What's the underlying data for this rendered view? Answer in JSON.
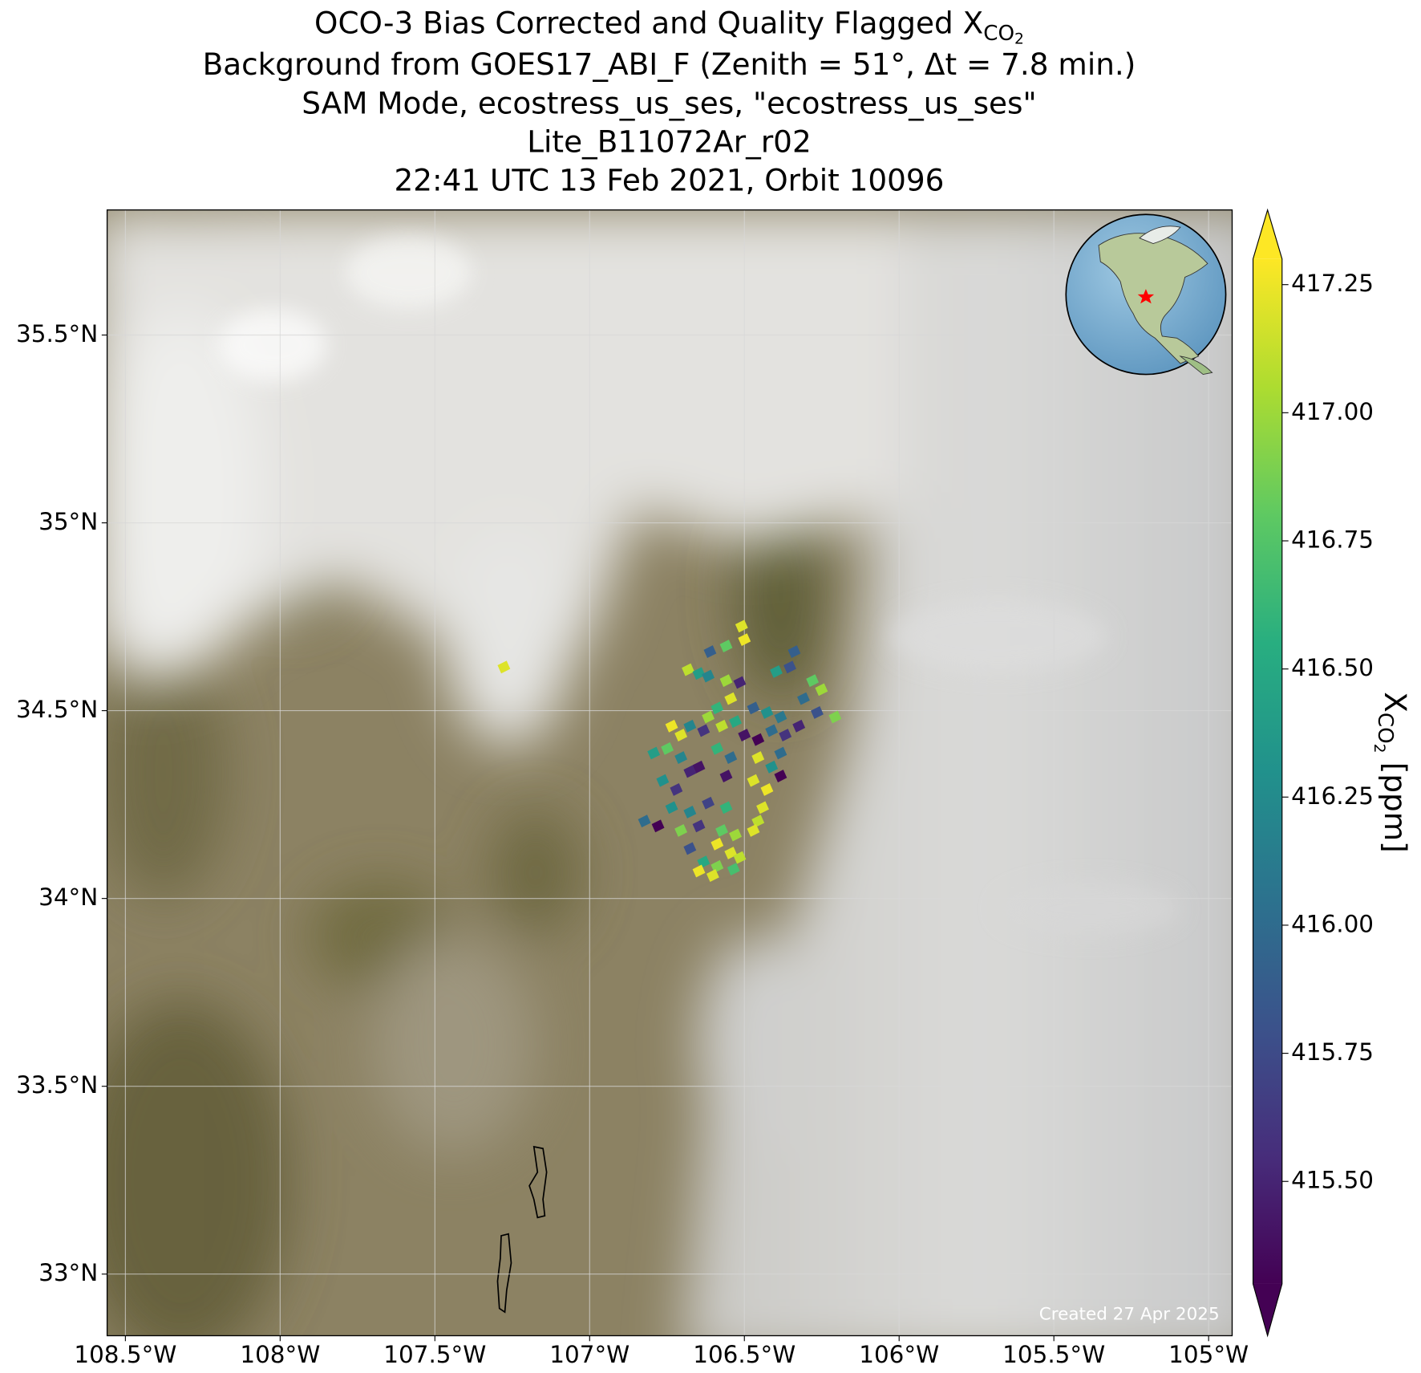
{
  "chart_data": {
    "type": "map",
    "title": {
      "main": "OCO-3 Bias Corrected and Quality Flagged X",
      "sub": "CO",
      "subsub": "2"
    },
    "subtitle": [
      "Background from GOES17_ABI_F (Zenith = 51°, Δt =  7.8 min.)",
      "SAM Mode, ecostress_us_ses, \"ecostress_us_ses\"",
      "Lite_B11072Ar_r02",
      "22:41 UTC 13 Feb 2021, Orbit 10096"
    ],
    "xlim": [
      -108.559,
      -104.924
    ],
    "ylim": [
      32.836,
      35.833
    ],
    "xticks": [
      {
        "value": -108.5,
        "label": "108.5°W"
      },
      {
        "value": -108,
        "label": "108°W"
      },
      {
        "value": -107.5,
        "label": "107.5°W"
      },
      {
        "value": -107,
        "label": "107°W"
      },
      {
        "value": -106.5,
        "label": "106.5°W"
      },
      {
        "value": -106,
        "label": "106°W"
      },
      {
        "value": -105.5,
        "label": "105.5°W"
      },
      {
        "value": -105,
        "label": "105°W"
      }
    ],
    "yticks": [
      {
        "value": 33,
        "label": "33°N"
      },
      {
        "value": 33.5,
        "label": "33.5°N"
      },
      {
        "value": 34,
        "label": "34°N"
      },
      {
        "value": 34.5,
        "label": "34.5°N"
      },
      {
        "value": 35,
        "label": "35°N"
      },
      {
        "value": 35.5,
        "label": "35.5°N"
      }
    ],
    "grid": true,
    "annotation": "Created 27 Apr 2025",
    "colorbar": {
      "label": {
        "main": "X",
        "sub": "CO",
        "subsub": "2",
        "unit": "[ppm]"
      },
      "lim": [
        415.3,
        417.3
      ],
      "extend": "both",
      "colormap": [
        "#440154",
        "#472d7b",
        "#3b528b",
        "#2c728e",
        "#21918c",
        "#28ae80",
        "#5ec962",
        "#addc30",
        "#fde725"
      ],
      "ticks": [
        {
          "value": 415.5,
          "label": "415.50"
        },
        415.75,
        {
          "value": 416,
          "label": "416.00"
        },
        416.25,
        {
          "value": 416.5,
          "label": "416.50"
        },
        416.75,
        {
          "value": 417,
          "label": "417.00"
        },
        417.25
      ]
    },
    "soundings": {
      "lon": [
        -106.509,
        -106.5,
        -106.559,
        -106.611,
        -106.682,
        -106.647,
        -106.617,
        -106.559,
        -106.515,
        -106.397,
        -106.353,
        -106.339,
        -106.28,
        -106.251,
        -106.309,
        -106.265,
        -106.207,
        -106.544,
        -106.588,
        -106.617,
        -106.471,
        -106.427,
        -106.383,
        -106.735,
        -106.705,
        -106.676,
        -106.632,
        -106.573,
        -106.529,
        -106.5,
        -106.456,
        -106.412,
        -106.368,
        -106.324,
        -106.793,
        -106.749,
        -106.705,
        -106.647,
        -106.588,
        -106.544,
        -106.456,
        -106.412,
        -106.383,
        -106.764,
        -106.72,
        -106.676,
        -106.559,
        -106.471,
        -106.427,
        -106.383,
        -106.735,
        -106.676,
        -106.617,
        -106.559,
        -106.441,
        -106.456,
        -106.823,
        -106.779,
        -106.705,
        -106.647,
        -106.573,
        -106.529,
        -106.471,
        -106.676,
        -106.588,
        -106.544,
        -106.515,
        -106.632,
        -106.588,
        -106.647,
        -106.602,
        -106.535,
        -107.277
      ],
      "lat": [
        34.725,
        34.689,
        34.672,
        34.657,
        34.609,
        34.599,
        34.592,
        34.58,
        34.575,
        34.604,
        34.616,
        34.657,
        34.58,
        34.556,
        34.532,
        34.495,
        34.483,
        34.532,
        34.507,
        34.483,
        34.507,
        34.495,
        34.483,
        34.459,
        34.435,
        34.459,
        34.447,
        34.459,
        34.471,
        34.435,
        34.423,
        34.447,
        34.435,
        34.459,
        34.387,
        34.399,
        34.375,
        34.35,
        34.399,
        34.375,
        34.375,
        34.35,
        34.387,
        34.314,
        34.29,
        34.338,
        34.326,
        34.314,
        34.29,
        34.326,
        34.242,
        34.23,
        34.254,
        34.242,
        34.242,
        34.206,
        34.206,
        34.193,
        34.181,
        34.193,
        34.181,
        34.169,
        34.181,
        34.133,
        34.145,
        34.121,
        34.109,
        34.097,
        34.085,
        34.073,
        34.061,
        34.078,
        34.616
      ],
      "xco2": [
        417.2,
        417.25,
        416.8,
        415.9,
        417.1,
        416.4,
        416.2,
        417.0,
        415.5,
        416.4,
        415.8,
        415.9,
        416.8,
        417.0,
        416.0,
        415.8,
        416.9,
        417.2,
        416.6,
        417.0,
        415.9,
        416.3,
        416.1,
        417.25,
        417.2,
        416.2,
        415.6,
        417.1,
        416.5,
        415.4,
        415.3,
        416.0,
        415.6,
        415.5,
        416.4,
        416.8,
        416.2,
        415.4,
        416.6,
        416.0,
        417.2,
        416.3,
        416.0,
        416.3,
        415.6,
        415.5,
        415.4,
        417.2,
        417.25,
        415.3,
        416.3,
        416.2,
        415.7,
        416.6,
        417.2,
        417.1,
        416.0,
        415.3,
        416.9,
        415.6,
        416.8,
        417.0,
        417.2,
        415.8,
        417.25,
        417.2,
        417.1,
        416.5,
        416.9,
        417.25,
        417.2,
        416.7,
        417.2
      ]
    }
  }
}
